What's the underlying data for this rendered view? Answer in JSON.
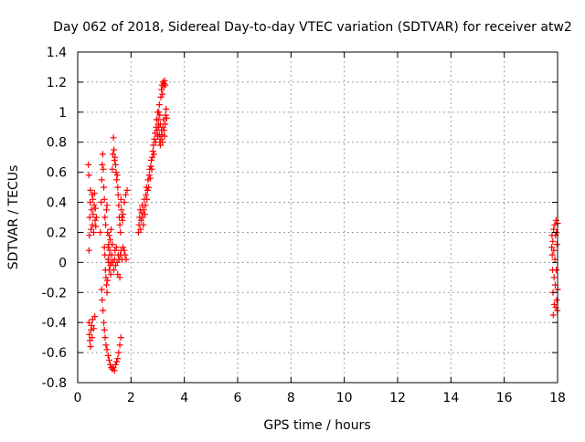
{
  "chart_data": {
    "type": "scatter",
    "title": "Day 062 of 2018, Sidereal Day-to-day VTEC variation (SDTVAR) for receiver atw2",
    "xlabel": "GPS time / hours",
    "ylabel": "SDTVAR / TECUs",
    "xlim": [
      0,
      18
    ],
    "ylim": [
      -0.8,
      1.4
    ],
    "xticks": [
      0,
      2,
      4,
      6,
      8,
      10,
      12,
      14,
      16,
      18
    ],
    "xtick_labels": [
      "0",
      "2",
      "4",
      "6",
      "8",
      "10",
      "12",
      "14",
      "16",
      "18"
    ],
    "yticks": [
      -0.8,
      -0.6,
      -0.4,
      -0.2,
      0,
      0.2,
      0.4,
      0.6,
      0.8,
      1,
      1.2,
      1.4
    ],
    "ytick_labels": [
      "-0.8",
      "-0.6",
      "-0.4",
      "-0.2",
      "0",
      "0.2",
      "0.4",
      "0.6",
      "0.8",
      "1",
      "1.2",
      "1.4"
    ],
    "grid": true,
    "marker": "+",
    "marker_color": "#ff0000",
    "series": [
      {
        "name": "SDTVAR",
        "points": [
          [
            0.4,
            0.65
          ],
          [
            0.42,
            0.58
          ],
          [
            0.42,
            0.08
          ],
          [
            0.44,
            0.18
          ],
          [
            0.45,
            0.3
          ],
          [
            0.47,
            0.4
          ],
          [
            0.48,
            0.48
          ],
          [
            0.5,
            0.22
          ],
          [
            0.52,
            0.35
          ],
          [
            0.54,
            0.45
          ],
          [
            0.55,
            0.25
          ],
          [
            0.57,
            0.42
          ],
          [
            0.58,
            0.32
          ],
          [
            0.6,
            0.2
          ],
          [
            0.62,
            0.38
          ],
          [
            0.63,
            0.46
          ],
          [
            0.65,
            0.28
          ],
          [
            0.66,
            0.36
          ],
          [
            0.68,
            0.24
          ],
          [
            0.7,
            0.3
          ],
          [
            0.42,
            -0.4
          ],
          [
            0.44,
            -0.48
          ],
          [
            0.46,
            -0.52
          ],
          [
            0.48,
            -0.56
          ],
          [
            0.5,
            -0.45
          ],
          [
            0.52,
            -0.42
          ],
          [
            0.54,
            -0.5
          ],
          [
            0.56,
            -0.38
          ],
          [
            0.6,
            -0.44
          ],
          [
            0.64,
            -0.36
          ],
          [
            0.9,
            -0.18
          ],
          [
            0.92,
            -0.25
          ],
          [
            0.95,
            -0.32
          ],
          [
            0.98,
            -0.4
          ],
          [
            1.0,
            -0.45
          ],
          [
            1.03,
            -0.5
          ],
          [
            1.06,
            -0.55
          ],
          [
            1.1,
            -0.58
          ],
          [
            1.14,
            -0.62
          ],
          [
            1.18,
            -0.65
          ],
          [
            1.22,
            -0.68
          ],
          [
            1.26,
            -0.7
          ],
          [
            1.3,
            -0.71
          ],
          [
            1.34,
            -0.7
          ],
          [
            1.38,
            -0.72
          ],
          [
            1.42,
            -0.68
          ],
          [
            1.46,
            -0.66
          ],
          [
            1.5,
            -0.64
          ],
          [
            1.54,
            -0.6
          ],
          [
            1.58,
            -0.55
          ],
          [
            1.62,
            -0.5
          ],
          [
            0.85,
            0.2
          ],
          [
            0.88,
            0.4
          ],
          [
            0.9,
            0.55
          ],
          [
            0.92,
            0.65
          ],
          [
            0.94,
            0.72
          ],
          [
            0.96,
            0.62
          ],
          [
            0.98,
            0.5
          ],
          [
            1.0,
            0.42
          ],
          [
            1.02,
            0.3
          ],
          [
            1.05,
            0.25
          ],
          [
            1.08,
            0.35
          ],
          [
            1.1,
            0.38
          ],
          [
            1.12,
            0.2
          ],
          [
            1.14,
            0.1
          ],
          [
            1.16,
            0.0
          ],
          [
            1.18,
            -0.05
          ],
          [
            1.2,
            0.05
          ],
          [
            1.22,
            0.15
          ],
          [
            1.25,
            0.22
          ],
          [
            1.28,
            0.05
          ],
          [
            1.3,
            0.12
          ],
          [
            1.32,
            0.0
          ],
          [
            1.35,
            -0.05
          ],
          [
            1.38,
            0.02
          ],
          [
            1.4,
            0.08
          ],
          [
            1.42,
            -0.02
          ],
          [
            1.45,
            0.1
          ],
          [
            1.48,
            0.0
          ],
          [
            1.5,
            -0.08
          ],
          [
            1.52,
            0.05
          ],
          [
            1.55,
            0.02
          ],
          [
            1.58,
            -0.1
          ],
          [
            1.6,
            0.05
          ],
          [
            1.63,
            0.08
          ],
          [
            1.66,
            0.02
          ],
          [
            1.7,
            0.1
          ],
          [
            1.74,
            0.08
          ],
          [
            1.78,
            0.05
          ],
          [
            1.82,
            0.02
          ],
          [
            1.0,
            0.1
          ],
          [
            1.02,
            0.05
          ],
          [
            1.04,
            -0.05
          ],
          [
            1.06,
            -0.1
          ],
          [
            1.08,
            -0.15
          ],
          [
            1.1,
            -0.2
          ],
          [
            1.12,
            -0.12
          ],
          [
            1.14,
            0.02
          ],
          [
            1.16,
            0.12
          ],
          [
            1.18,
            0.18
          ],
          [
            1.2,
            0.08
          ],
          [
            1.22,
            -0.02
          ],
          [
            1.24,
            -0.08
          ],
          [
            1.26,
            0.0
          ],
          [
            1.3,
            0.62
          ],
          [
            1.32,
            0.72
          ],
          [
            1.34,
            0.83
          ],
          [
            1.36,
            0.75
          ],
          [
            1.38,
            0.68
          ],
          [
            1.4,
            0.7
          ],
          [
            1.42,
            0.65
          ],
          [
            1.44,
            0.6
          ],
          [
            1.46,
            0.55
          ],
          [
            1.48,
            0.58
          ],
          [
            1.5,
            0.5
          ],
          [
            1.52,
            0.45
          ],
          [
            1.54,
            0.38
          ],
          [
            1.56,
            0.3
          ],
          [
            1.58,
            0.25
          ],
          [
            1.6,
            0.2
          ],
          [
            1.62,
            0.42
          ],
          [
            1.64,
            0.35
          ],
          [
            1.66,
            0.3
          ],
          [
            1.68,
            0.28
          ],
          [
            1.7,
            0.32
          ],
          [
            1.75,
            0.4
          ],
          [
            1.8,
            0.45
          ],
          [
            1.85,
            0.48
          ],
          [
            2.28,
            0.2
          ],
          [
            2.3,
            0.25
          ],
          [
            2.32,
            0.3
          ],
          [
            2.34,
            0.35
          ],
          [
            2.36,
            0.22
          ],
          [
            2.38,
            0.28
          ],
          [
            2.4,
            0.33
          ],
          [
            2.42,
            0.38
          ],
          [
            2.44,
            0.3
          ],
          [
            2.46,
            0.25
          ],
          [
            2.48,
            0.35
          ],
          [
            2.5,
            0.42
          ],
          [
            2.52,
            0.32
          ],
          [
            2.54,
            0.38
          ],
          [
            2.56,
            0.45
          ],
          [
            2.58,
            0.5
          ],
          [
            2.6,
            0.42
          ],
          [
            2.62,
            0.48
          ],
          [
            2.64,
            0.55
          ],
          [
            2.66,
            0.5
          ],
          [
            2.68,
            0.58
          ],
          [
            2.7,
            0.62
          ],
          [
            2.72,
            0.56
          ],
          [
            2.74,
            0.64
          ],
          [
            2.76,
            0.68
          ],
          [
            2.78,
            0.62
          ],
          [
            2.8,
            0.7
          ],
          [
            2.82,
            0.74
          ],
          [
            2.84,
            0.78
          ],
          [
            2.86,
            0.72
          ],
          [
            2.88,
            0.82
          ],
          [
            2.9,
            0.86
          ],
          [
            2.92,
            0.8
          ],
          [
            2.94,
            0.9
          ],
          [
            2.96,
            0.95
          ],
          [
            2.98,
            0.88
          ],
          [
            3.0,
            0.84
          ],
          [
            3.02,
            0.92
          ],
          [
            3.04,
            1.0
          ],
          [
            3.06,
            1.05
          ],
          [
            3.08,
            0.98
          ],
          [
            3.1,
            0.92
          ],
          [
            3.12,
            1.1
          ],
          [
            3.14,
            1.15
          ],
          [
            3.16,
            1.18
          ],
          [
            3.18,
            1.12
          ],
          [
            3.2,
            1.2
          ],
          [
            3.22,
            1.17
          ],
          [
            3.24,
            1.19
          ],
          [
            3.26,
            1.21
          ],
          [
            3.28,
            1.18
          ],
          [
            3.0,
            1.0
          ],
          [
            3.02,
            0.95
          ],
          [
            3.04,
            0.9
          ],
          [
            3.06,
            0.85
          ],
          [
            3.08,
            0.8
          ],
          [
            3.1,
            0.78
          ],
          [
            3.12,
            0.82
          ],
          [
            3.14,
            0.88
          ],
          [
            3.16,
            0.85
          ],
          [
            3.18,
            0.8
          ],
          [
            3.2,
            0.9
          ],
          [
            3.22,
            0.95
          ],
          [
            3.24,
            0.88
          ],
          [
            3.26,
            0.84
          ],
          [
            3.28,
            0.92
          ],
          [
            3.3,
            0.98
          ],
          [
            3.32,
            1.02
          ],
          [
            3.34,
            0.96
          ],
          [
            17.78,
            0.1
          ],
          [
            17.79,
            0.18
          ],
          [
            17.8,
            0.05
          ],
          [
            17.81,
            -0.05
          ],
          [
            17.82,
            0.14
          ],
          [
            17.83,
            -0.2
          ],
          [
            17.84,
            -0.35
          ],
          [
            17.85,
            0.22
          ],
          [
            17.86,
            0.08
          ],
          [
            17.87,
            -0.1
          ],
          [
            17.88,
            -0.28
          ],
          [
            17.89,
            0.25
          ],
          [
            17.9,
            0.02
          ],
          [
            17.91,
            -0.15
          ],
          [
            17.92,
            0.18
          ],
          [
            17.93,
            -0.3
          ],
          [
            17.94,
            0.28
          ],
          [
            17.95,
            -0.05
          ],
          [
            17.96,
            0.2
          ],
          [
            17.97,
            -0.25
          ],
          [
            17.98,
            0.12
          ],
          [
            17.99,
            -0.32
          ],
          [
            18.0,
            0.26
          ],
          [
            18.0,
            -0.18
          ]
        ]
      }
    ]
  }
}
